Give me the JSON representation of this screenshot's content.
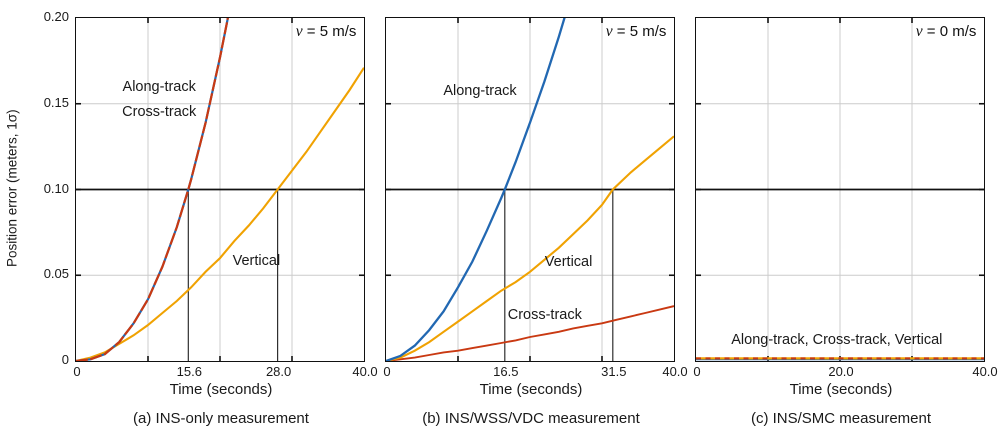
{
  "figure": {
    "ylabel": "Position error (meters, 1σ)",
    "y_ticks": [
      {
        "value": 0,
        "label": "0"
      },
      {
        "value": 0.05,
        "label": "0.05"
      },
      {
        "value": 0.1,
        "label": "0.10"
      },
      {
        "value": 0.15,
        "label": "0.15"
      },
      {
        "value": 0.2,
        "label": "0.20"
      }
    ],
    "colors": {
      "along_track": "#2268b2",
      "cross_track": "#c93912",
      "vertical": "#f0a202",
      "grid": "#cccccc",
      "axis": "#111111",
      "refline": "#111111",
      "marker_line": "#2f2f2f"
    }
  },
  "chart_data": [
    {
      "type": "line",
      "caption": "(a) INS-only measurement",
      "xlabel": "Time (seconds)",
      "velocity_label": "v = 5 m/s",
      "xlim": [
        0,
        40
      ],
      "ylim": [
        0,
        0.2
      ],
      "x_gridlines": [
        10,
        20,
        30
      ],
      "y_gridlines": [
        0.05,
        0.15
      ],
      "y_refline": 0.1,
      "x_reflines": [
        15.6,
        28.0
      ],
      "x_ticks": [
        {
          "t": 0,
          "label": "0"
        },
        {
          "t": 15.6,
          "label": "15.6"
        },
        {
          "t": 28.0,
          "label": "28.0"
        },
        {
          "t": 40.0,
          "label": "40.0"
        }
      ],
      "series": [
        {
          "name": "Vertical",
          "color_key": "vertical",
          "dash": "",
          "width": 2.1,
          "x": [
            0,
            2,
            4,
            6,
            8,
            10,
            12,
            14,
            16,
            18,
            20,
            22,
            24,
            26,
            28,
            30,
            32,
            34,
            36,
            38,
            40
          ],
          "y": [
            0,
            0.002,
            0.005,
            0.01,
            0.015,
            0.021,
            0.028,
            0.035,
            0.043,
            0.052,
            0.06,
            0.07,
            0.079,
            0.089,
            0.1,
            0.111,
            0.122,
            0.134,
            0.146,
            0.158,
            0.171
          ]
        },
        {
          "name": "Along-track",
          "color_key": "along_track",
          "dash": "",
          "width": 2.2,
          "x": [
            0,
            2,
            4,
            6,
            8,
            10,
            12,
            14,
            15.6,
            16,
            18,
            20,
            21,
            22
          ],
          "y": [
            0,
            0.001,
            0.004,
            0.011,
            0.022,
            0.036,
            0.055,
            0.078,
            0.1,
            0.106,
            0.139,
            0.177,
            0.198,
            0.222
          ]
        },
        {
          "name": "Cross-track",
          "color_key": "cross_track",
          "dash": "12 2.5",
          "width": 2.2,
          "x": [
            0,
            2,
            4,
            6,
            8,
            10,
            12,
            14,
            15.6,
            16,
            18,
            20,
            21,
            22
          ],
          "y": [
            0,
            0.001,
            0.004,
            0.011,
            0.022,
            0.036,
            0.055,
            0.078,
            0.1,
            0.106,
            0.139,
            0.177,
            0.198,
            0.222
          ]
        }
      ],
      "labels": [
        {
          "text": "Along-track",
          "t": 11.5,
          "e": 0.159
        },
        {
          "text": "Cross-track",
          "t": 11.5,
          "e": 0.1445
        },
        {
          "text": "Vertical",
          "t": 25.0,
          "e": 0.058
        }
      ]
    },
    {
      "type": "line",
      "caption": "(b) INS/WSS/VDC measurement",
      "xlabel": "Time (seconds)",
      "velocity_label": "v = 5 m/s",
      "xlim": [
        0,
        40
      ],
      "ylim": [
        0,
        0.2
      ],
      "x_gridlines": [
        10,
        20,
        30
      ],
      "y_gridlines": [
        0.05,
        0.15
      ],
      "y_refline": 0.1,
      "x_reflines": [
        16.5,
        31.5
      ],
      "x_ticks": [
        {
          "t": 0,
          "label": "0"
        },
        {
          "t": 16.5,
          "label": "16.5"
        },
        {
          "t": 31.5,
          "label": "31.5"
        },
        {
          "t": 40.0,
          "label": "40.0"
        }
      ],
      "series": [
        {
          "name": "Cross-track",
          "color_key": "cross_track",
          "dash": "",
          "width": 1.9,
          "x": [
            0,
            2,
            4,
            6,
            8,
            10,
            12,
            14,
            16,
            18,
            20,
            22,
            24,
            26,
            28,
            30,
            32,
            34,
            36,
            38,
            40
          ],
          "y": [
            0,
            0.001,
            0.002,
            0.0035,
            0.005,
            0.006,
            0.0075,
            0.009,
            0.0105,
            0.012,
            0.014,
            0.0155,
            0.017,
            0.019,
            0.0205,
            0.022,
            0.024,
            0.026,
            0.028,
            0.03,
            0.032
          ]
        },
        {
          "name": "Vertical",
          "color_key": "vertical",
          "dash": "",
          "width": 2.1,
          "x": [
            0,
            2,
            4,
            6,
            8,
            10,
            12,
            14,
            16,
            18,
            20,
            22,
            24,
            26,
            28,
            30,
            31.5,
            34,
            36,
            38,
            40
          ],
          "y": [
            0,
            0.002,
            0.006,
            0.011,
            0.017,
            0.023,
            0.029,
            0.035,
            0.041,
            0.046,
            0.052,
            0.059,
            0.066,
            0.074,
            0.082,
            0.091,
            0.1,
            0.11,
            0.117,
            0.124,
            0.131
          ]
        },
        {
          "name": "Along-track",
          "color_key": "along_track",
          "dash": "",
          "width": 2.3,
          "x": [
            0,
            2,
            4,
            6,
            8,
            10,
            12,
            14,
            16,
            16.5,
            18,
            20,
            22,
            24,
            26
          ],
          "y": [
            0,
            0.003,
            0.009,
            0.018,
            0.029,
            0.043,
            0.058,
            0.076,
            0.095,
            0.1,
            0.116,
            0.139,
            0.163,
            0.189,
            0.217
          ]
        }
      ],
      "labels": [
        {
          "text": "Along-track",
          "t": 13.0,
          "e": 0.157
        },
        {
          "text": "Vertical",
          "t": 25.3,
          "e": 0.057
        },
        {
          "text": "Cross-track",
          "t": 22.0,
          "e": 0.026
        }
      ]
    },
    {
      "type": "line",
      "caption": "(c) INS/SMC measurement",
      "xlabel": "Time (seconds)",
      "velocity_label": "v = 0 m/s",
      "xlim": [
        0,
        40
      ],
      "ylim": [
        0,
        0.2
      ],
      "x_gridlines": [
        10,
        20,
        30
      ],
      "y_gridlines": [
        0.05,
        0.15
      ],
      "y_refline": 0.1,
      "x_reflines": [],
      "x_ticks": [
        {
          "t": 0,
          "label": "0"
        },
        {
          "t": 20.0,
          "label": "20.0"
        },
        {
          "t": 40.0,
          "label": "40.0"
        }
      ],
      "series": [
        {
          "name": "Along-track",
          "color_key": "along_track",
          "dash": "",
          "width": 2.0,
          "x": [
            0,
            40
          ],
          "y": [
            0.001,
            0.001
          ]
        },
        {
          "name": "Vertical",
          "color_key": "vertical",
          "dash": "",
          "width": 2.2,
          "x": [
            0,
            40
          ],
          "y": [
            0.0015,
            0.0015
          ]
        },
        {
          "name": "Cross-track",
          "color_key": "cross_track",
          "dash": "5 4.5",
          "width": 2.0,
          "x": [
            0,
            40
          ],
          "y": [
            0.0015,
            0.0015
          ]
        }
      ],
      "labels": [
        {
          "text": "Along-track, Cross-track, Vertical",
          "t": 19.5,
          "e": 0.0115
        }
      ]
    }
  ]
}
